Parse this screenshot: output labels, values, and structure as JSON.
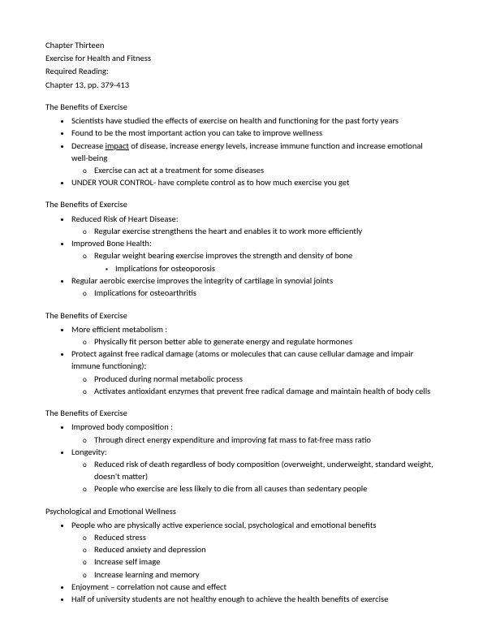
{
  "header": {
    "chapter": "Chapter Thirteen",
    "title": "Exercise for Health and Fitness",
    "required": "Required Reading:",
    "pages": "Chapter 13, pp. 379-413"
  },
  "sec1": {
    "title": "The Benefits of Exercise",
    "b1": "Scientists have studied the effects of exercise on health and functioning for the past forty years",
    "b2": "Found to be the most important action you can take to improve wellness",
    "b3a": "Decrease ",
    "b3u": "impact",
    "b3b": " of disease, increase energy levels, increase immune function and increase emotional well-being",
    "b3s1": "Exercise can act at a treatment for some diseases",
    "b4": "UNDER YOUR CONTROL- have complete control as to how much exercise you get"
  },
  "sec2": {
    "title": "The Benefits of Exercise",
    "b1": "Reduced Risk of Heart Disease:",
    "b1s1": "Regular exercise strengthens the heart and enables it to work more efficiently",
    "b2": "Improved Bone Health:",
    "b2s1": "Regular weight bearing exercise improves the strength and density of bone",
    "b2s1a": "Implications for osteoporosis",
    "b3": "Regular aerobic exercise improves the integrity of cartilage in synovial joints",
    "b3s1": "Implications for osteoarthritis"
  },
  "sec3": {
    "title": "The Benefits of Exercise",
    "b1": "More efficient metabolism :",
    "b1s1": "Physically fit person better able to generate energy and regulate hormones",
    "b2": "Protect against free radical damage (atoms or molecules that can cause cellular damage and impair immune functioning):",
    "b2s1": "Produced during normal metabolic process",
    "b2s2": "Activates antioxidant enzymes  that prevent free radical damage and maintain health of body cells"
  },
  "sec4": {
    "title": "The Benefits of Exercise",
    "b1": "Improved body composition :",
    "b1s1": "Through direct  energy expenditure and improving fat mass to fat-free mass ratio",
    "b2": "Longevity:",
    "b2s1": "Reduced risk of death regardless of body composition (overweight, underweight, standard weight, doesn't matter)",
    "b2s2": "People who exercise are less likely to die from  all causes than sedentary people"
  },
  "sec5": {
    "title": "Psychological and Emotional Wellness",
    "b1": "People who are physically active experience social, psychological and emotional benefits",
    "b1s1": "Reduced stress",
    "b1s2": "Reduced anxiety and depression",
    "b1s3": "Increase self image",
    "b1s4": "Increase learning and memory",
    "b2": "Enjoyment – correlation not cause and effect",
    "b3": "Half of university students are not healthy enough to achieve the health benefits of exercise"
  }
}
